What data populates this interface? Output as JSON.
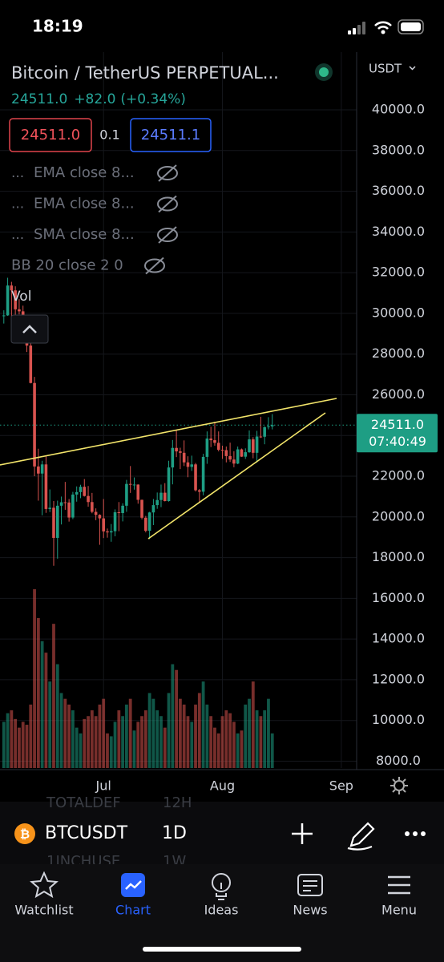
{
  "status_bar": {
    "time": "18:19"
  },
  "header": {
    "symbol_name": "Bitcoin / TetherUS PERPETUAL...",
    "last_price": "24511.0",
    "change": "+82.0",
    "change_pct": "(+0.34%)",
    "bid": "24511.0",
    "spread": "0.1",
    "ask": "24511.1"
  },
  "indicators": [
    {
      "menu": "...",
      "label": "EMA close 8..."
    },
    {
      "menu": "...",
      "label": "EMA close 8..."
    },
    {
      "menu": "...",
      "label": "SMA close 8..."
    },
    {
      "label": "BB 20 close 2 0"
    }
  ],
  "volume_label": "Vol",
  "chart_data": {
    "type": "candlestick",
    "currency": "USDT",
    "ylim": [
      7665,
      42836
    ],
    "xlim": [
      -1,
      92
    ],
    "yticks": [
      {
        "value": 40000,
        "label": "40000.0"
      },
      {
        "value": 38000,
        "label": "38000.0"
      },
      {
        "value": 36000,
        "label": "36000.0"
      },
      {
        "value": 34000,
        "label": "34000.0"
      },
      {
        "value": 32000,
        "label": "32000.0"
      },
      {
        "value": 30000,
        "label": "30000.0"
      },
      {
        "value": 28000,
        "label": "28000.0"
      },
      {
        "value": 26000,
        "label": "26000.0"
      },
      {
        "value": 24000,
        "label": "24000.0"
      },
      {
        "value": 22000,
        "label": "22000.0"
      },
      {
        "value": 20000,
        "label": "20000.0"
      },
      {
        "value": 18000,
        "label": "18000.0"
      },
      {
        "value": 16000,
        "label": "16000.0"
      },
      {
        "value": 14000,
        "label": "14000.0"
      },
      {
        "value": 12000,
        "label": "12000.0"
      },
      {
        "value": 10000,
        "label": "10000.0"
      },
      {
        "value": 8000,
        "label": "8000.0"
      }
    ],
    "xticks": [
      {
        "value": 26,
        "label": "Jul"
      },
      {
        "value": 57,
        "label": "Aug"
      },
      {
        "value": 88,
        "label": "Sep"
      }
    ],
    "up_color": "#1e9e84",
    "down_color": "#d8534f",
    "last_price": {
      "value": 24511,
      "label": "24511.0",
      "countdown": "07:40:49"
    },
    "candles": [
      [
        29860,
        30150,
        29500,
        29900
      ],
      [
        29900,
        31750,
        29880,
        31370
      ],
      [
        31370,
        31550,
        29220,
        31130
      ],
      [
        31130,
        31330,
        29850,
        30200
      ],
      [
        30200,
        30700,
        29950,
        30100
      ],
      [
        30100,
        30380,
        28850,
        29090
      ],
      [
        29090,
        29440,
        28100,
        28420
      ],
      [
        28420,
        28550,
        26560,
        26580
      ],
      [
        26580,
        26880,
        22000,
        22480
      ],
      [
        22480,
        23350,
        20800,
        22130
      ],
      [
        22130,
        22760,
        20080,
        22580
      ],
      [
        22580,
        22980,
        20200,
        20390
      ],
      [
        20390,
        21350,
        20240,
        20450
      ],
      [
        20450,
        20780,
        17600,
        18970
      ],
      [
        18970,
        20800,
        17950,
        20550
      ],
      [
        20550,
        21000,
        19630,
        20720
      ],
      [
        20720,
        21720,
        20350,
        20710
      ],
      [
        20710,
        20880,
        19770,
        19970
      ],
      [
        19970,
        21230,
        19890,
        21100
      ],
      [
        21100,
        21500,
        20750,
        21220
      ],
      [
        21220,
        21580,
        20920,
        21480
      ],
      [
        21480,
        21860,
        21000,
        21030
      ],
      [
        21030,
        21520,
        20500,
        20730
      ],
      [
        20730,
        21180,
        20180,
        20250
      ],
      [
        20250,
        20420,
        19840,
        20100
      ],
      [
        20100,
        20130,
        18630,
        19930
      ],
      [
        19930,
        20880,
        18960,
        19290
      ],
      [
        19290,
        19430,
        18980,
        19240
      ],
      [
        19240,
        19650,
        18780,
        19300
      ],
      [
        19300,
        20370,
        19050,
        20230
      ],
      [
        20230,
        20730,
        19300,
        20190
      ],
      [
        20190,
        20670,
        19780,
        20550
      ],
      [
        20550,
        21820,
        20250,
        21620
      ],
      [
        21620,
        22500,
        21180,
        21580
      ],
      [
        21580,
        21940,
        21340,
        21590
      ],
      [
        21590,
        21600,
        20650,
        20840
      ],
      [
        20840,
        20850,
        19880,
        19960
      ],
      [
        19960,
        20050,
        19240,
        19320
      ],
      [
        19320,
        20250,
        18910,
        20220
      ],
      [
        20220,
        20880,
        19600,
        20580
      ],
      [
        20580,
        21200,
        20400,
        20830
      ],
      [
        20830,
        21590,
        20480,
        21190
      ],
      [
        21190,
        21660,
        20760,
        20780
      ],
      [
        20780,
        22760,
        20750,
        22430
      ],
      [
        22430,
        23780,
        21600,
        23390
      ],
      [
        23390,
        24280,
        22940,
        23220
      ],
      [
        23220,
        23400,
        22350,
        23150
      ],
      [
        23150,
        23760,
        22500,
        22680
      ],
      [
        22680,
        22980,
        21950,
        22460
      ],
      [
        22460,
        23010,
        22260,
        22580
      ],
      [
        22580,
        22650,
        21250,
        21310
      ],
      [
        21310,
        21370,
        20700,
        21240
      ],
      [
        21240,
        23100,
        21060,
        22950
      ],
      [
        22950,
        24200,
        22610,
        23850
      ],
      [
        23850,
        24430,
        23430,
        23770
      ],
      [
        23770,
        24680,
        23500,
        23640
      ],
      [
        23640,
        24200,
        23220,
        23300
      ],
      [
        23300,
        23500,
        22850,
        23280
      ],
      [
        23280,
        23460,
        22680,
        22990
      ],
      [
        22990,
        23650,
        22700,
        22820
      ],
      [
        22820,
        23230,
        22440,
        22620
      ],
      [
        22620,
        23460,
        22590,
        23320
      ],
      [
        23320,
        23360,
        22950,
        22960
      ],
      [
        22960,
        23370,
        22850,
        23180
      ],
      [
        23180,
        24250,
        23150,
        23810
      ],
      [
        23810,
        23920,
        22880,
        23150
      ],
      [
        23150,
        24230,
        22670,
        23950
      ],
      [
        23950,
        24920,
        23880,
        23940
      ],
      [
        23940,
        24450,
        23570,
        24410
      ],
      [
        24410,
        24900,
        24300,
        24450
      ],
      [
        24450,
        25050,
        24300,
        24511
      ]
    ],
    "volumes": [
      80,
      95,
      100,
      85,
      70,
      80,
      75,
      110,
      310,
      260,
      220,
      200,
      150,
      250,
      180,
      130,
      120,
      110,
      100,
      70,
      60,
      85,
      90,
      100,
      90,
      110,
      120,
      60,
      55,
      80,
      100,
      90,
      110,
      120,
      65,
      80,
      90,
      100,
      130,
      120,
      100,
      90,
      70,
      130,
      180,
      170,
      120,
      110,
      90,
      80,
      110,
      130,
      150,
      110,
      90,
      70,
      60,
      90,
      100,
      95,
      80,
      60,
      65,
      110,
      120,
      150,
      100,
      90,
      100,
      120,
      60
    ]
  },
  "symbol_bar": {
    "symbol": "BTCUSDT",
    "interval": "1D",
    "ghost_symbol_1": "TOTALDEF",
    "ghost_interval_1": "12H",
    "ghost_symbol_2": "1INCHUSE",
    "ghost_interval_2": "1W"
  },
  "nav": [
    {
      "label": "Watchlist"
    },
    {
      "label": "Chart"
    },
    {
      "label": "Ideas"
    },
    {
      "label": "News"
    },
    {
      "label": "Menu"
    }
  ]
}
